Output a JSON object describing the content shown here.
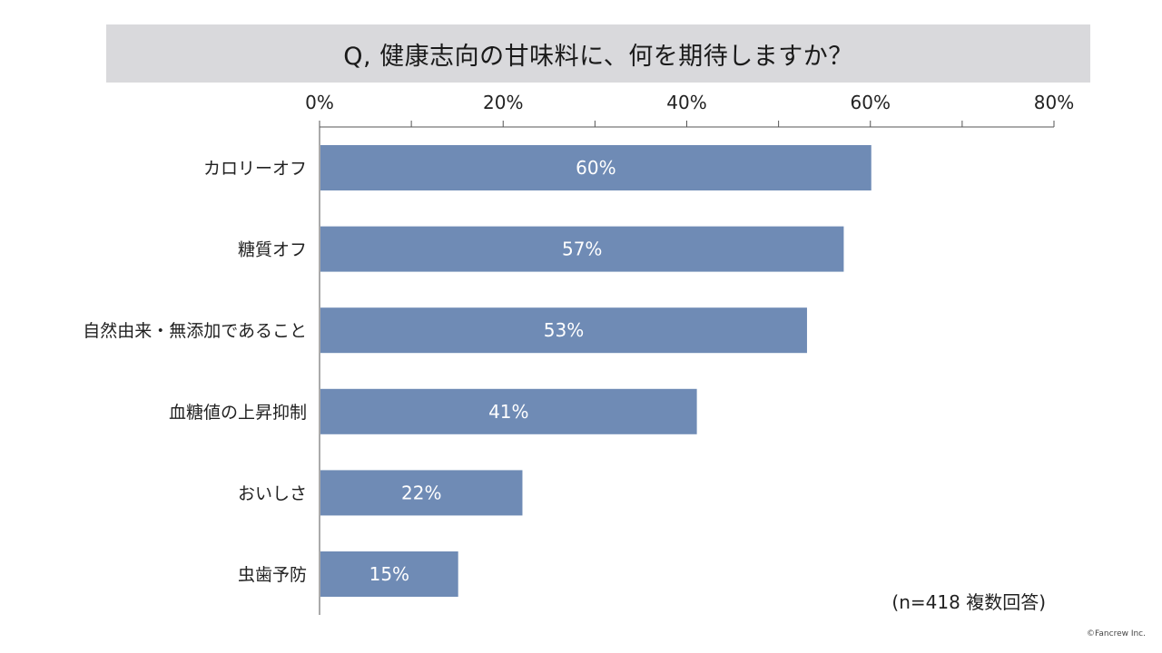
{
  "chart_data": {
    "type": "bar",
    "orientation": "horizontal",
    "title": "Q, 健康志向の甘味料に、何を期待しますか？",
    "categories": [
      "カロリーオフ",
      "糖質オフ",
      "自然由来・無添加であること",
      "血糖値の上昇抑制",
      "おいしさ",
      "虫歯予防"
    ],
    "values": [
      60,
      57,
      53,
      41,
      22,
      15
    ],
    "value_labels": [
      "60%",
      "57%",
      "53%",
      "41%",
      "22%",
      "15%"
    ],
    "xlim": [
      0,
      80
    ],
    "x_ticks": [
      0,
      20,
      40,
      60,
      80
    ],
    "x_tick_labels": [
      "0%",
      "20%",
      "40%",
      "60%",
      "80%"
    ],
    "x_axis_position": "top",
    "grid": false,
    "bar_color": "#6f8bb5",
    "note": "(n=418 複数回答)"
  },
  "footer": {
    "credit": "©Fancrew Inc."
  }
}
